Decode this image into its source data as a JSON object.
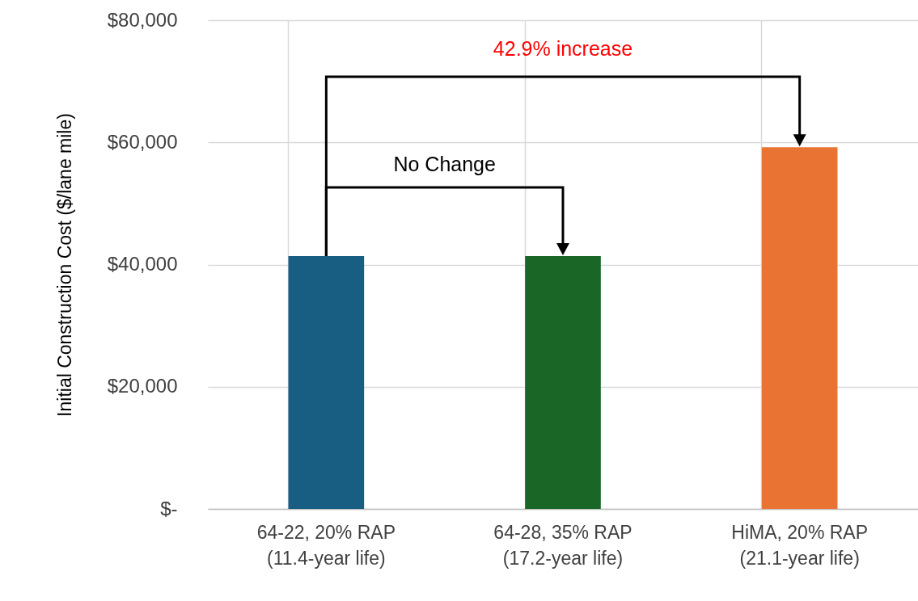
{
  "chart_data": {
    "type": "bar",
    "ylabel": "Initial Construction Cost ($/lane mile)",
    "categories": [
      "64-22, 20% RAP\n(11.4-year life)",
      "64-28, 35% RAP\n(17.2-year life)",
      "HiMA, 20% RAP\n(21.1-year life)"
    ],
    "values": [
      41400,
      41400,
      59200
    ],
    "colors": [
      "#185e82",
      "#1a6626",
      "#e87333"
    ],
    "ylim": [
      0,
      80000
    ],
    "yticks": [
      {
        "value": 0,
        "label": "$-"
      },
      {
        "value": 20000,
        "label": "$20,000"
      },
      {
        "value": 40000,
        "label": "$40,000"
      },
      {
        "value": 60000,
        "label": "$60,000"
      },
      {
        "value": 80000,
        "label": "$80,000"
      }
    ],
    "grid": true,
    "annotations": [
      "42.9% increase",
      "No Change"
    ]
  }
}
